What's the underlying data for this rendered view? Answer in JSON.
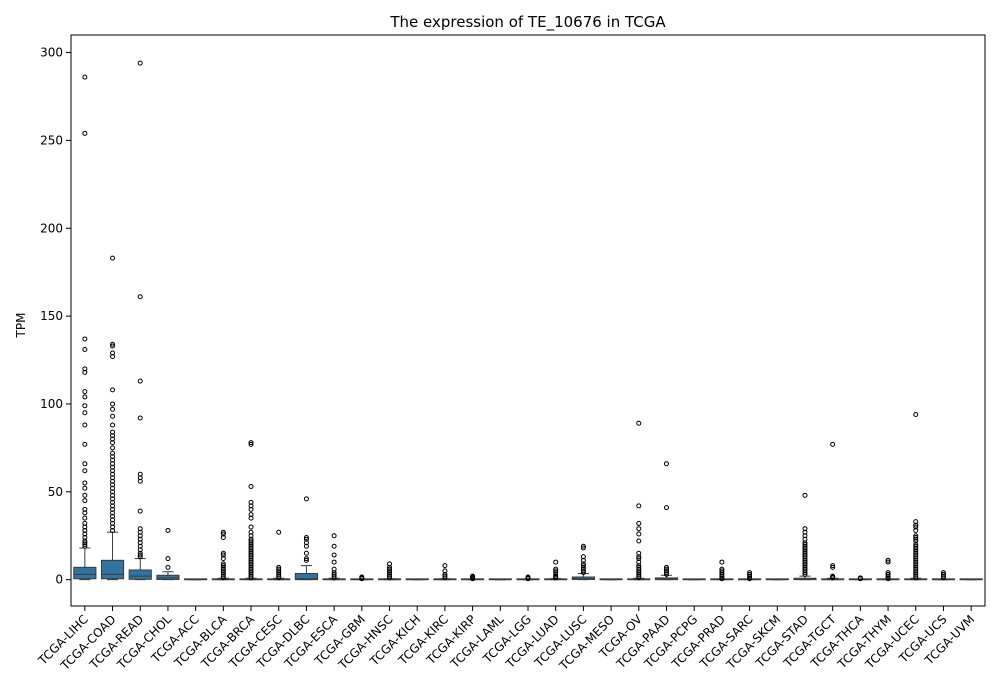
{
  "chart_data": {
    "type": "box",
    "title": "The expression of TE_10676 in TCGA",
    "xlabel": "",
    "ylabel": "TPM",
    "ylim": [
      -15,
      310
    ],
    "yticks": [
      0,
      50,
      100,
      150,
      200,
      250,
      300
    ],
    "grid": false,
    "legend": "none",
    "box_color": "#3274a1",
    "categories": [
      "TCGA-LIHC",
      "TCGA-COAD",
      "TCGA-READ",
      "TCGA-CHOL",
      "TCGA-ACC",
      "TCGA-BLCA",
      "TCGA-BRCA",
      "TCGA-CESC",
      "TCGA-DLBC",
      "TCGA-ESCA",
      "TCGA-GBM",
      "TCGA-HNSC",
      "TCGA-KICH",
      "TCGA-KIRC",
      "TCGA-KIRP",
      "TCGA-LAML",
      "TCGA-LGG",
      "TCGA-LUAD",
      "TCGA-LUSC",
      "TCGA-MESO",
      "TCGA-OV",
      "TCGA-PAAD",
      "TCGA-PCPG",
      "TCGA-PRAD",
      "TCGA-SARC",
      "TCGA-SKCM",
      "TCGA-STAD",
      "TCGA-TGCT",
      "TCGA-THCA",
      "TCGA-THYM",
      "TCGA-UCEC",
      "TCGA-UCS",
      "TCGA-UVM"
    ],
    "boxes": [
      {
        "min": 0,
        "q1": 0.5,
        "median": 3,
        "q3": 7,
        "max": 18,
        "outliers": [
          19,
          20,
          21,
          22,
          24,
          26,
          28,
          30,
          32,
          35,
          38,
          40,
          45,
          48,
          52,
          55,
          62,
          66,
          77,
          88,
          95,
          99,
          104,
          107,
          118,
          120,
          131,
          137,
          254,
          286
        ]
      },
      {
        "min": 0,
        "q1": 0.5,
        "median": 3,
        "q3": 11,
        "max": 27,
        "outliers": [
          28,
          30,
          32,
          34,
          36,
          38,
          40,
          42,
          44,
          46,
          48,
          50,
          52,
          54,
          56,
          58,
          60,
          62,
          64,
          66,
          68,
          70,
          72,
          75,
          78,
          80,
          82,
          84,
          88,
          93,
          97,
          100,
          108,
          127,
          129,
          133,
          134,
          183
        ]
      },
      {
        "min": 0,
        "q1": 0.2,
        "median": 2,
        "q3": 5.5,
        "max": 12,
        "outliers": [
          13,
          14,
          15,
          17,
          19,
          21,
          23,
          25,
          27,
          29,
          39,
          56,
          58,
          60,
          92,
          113,
          161,
          294
        ]
      },
      {
        "min": 0,
        "q1": 0.1,
        "median": 1,
        "q3": 2.5,
        "max": 4.5,
        "outliers": [
          7,
          12,
          28
        ]
      },
      {
        "min": 0,
        "q1": 0,
        "median": 0,
        "q3": 0,
        "max": 0,
        "outliers": []
      },
      {
        "min": 0,
        "q1": 0,
        "median": 0,
        "q3": 0.3,
        "max": 0.8,
        "outliers": [
          1,
          2,
          3,
          4,
          5,
          6,
          7,
          8,
          9,
          12,
          14,
          15,
          24,
          26,
          27
        ]
      },
      {
        "min": 0,
        "q1": 0,
        "median": 0,
        "q3": 0.3,
        "max": 0.8,
        "outliers": [
          1,
          2,
          3,
          4,
          5,
          6,
          7,
          8,
          9,
          10,
          11,
          12,
          13,
          14,
          15,
          16,
          17,
          18,
          19,
          20,
          21,
          22,
          23,
          25,
          27,
          30,
          35,
          37,
          40,
          42,
          44,
          53,
          77,
          78
        ]
      },
      {
        "min": 0,
        "q1": 0,
        "median": 0,
        "q3": 0.3,
        "max": 0.8,
        "outliers": [
          1,
          2,
          3,
          4,
          5,
          6,
          7,
          27
        ]
      },
      {
        "min": 0,
        "q1": 0,
        "median": 0.5,
        "q3": 3.5,
        "max": 8,
        "outliers": [
          11,
          12,
          15,
          19,
          21,
          23,
          24,
          46
        ]
      },
      {
        "min": 0,
        "q1": 0,
        "median": 0,
        "q3": 0.3,
        "max": 0.8,
        "outliers": [
          1,
          2,
          3,
          4,
          6,
          10,
          14,
          19,
          25
        ]
      },
      {
        "min": 0,
        "q1": 0,
        "median": 0,
        "q3": 0,
        "max": 0,
        "outliers": [
          0.5,
          1,
          1.5
        ]
      },
      {
        "min": 0,
        "q1": 0,
        "median": 0,
        "q3": 0.2,
        "max": 0.5,
        "outliers": [
          1,
          2,
          3,
          4,
          5,
          6,
          7,
          9
        ]
      },
      {
        "min": 0,
        "q1": 0,
        "median": 0,
        "q3": 0,
        "max": 0,
        "outliers": []
      },
      {
        "min": 0,
        "q1": 0,
        "median": 0,
        "q3": 0.2,
        "max": 0.5,
        "outliers": [
          1,
          2,
          3,
          5,
          8
        ]
      },
      {
        "min": 0,
        "q1": 0,
        "median": 0,
        "q3": 0.1,
        "max": 0.3,
        "outliers": [
          0.5,
          1,
          1.5,
          2
        ]
      },
      {
        "min": 0,
        "q1": 0,
        "median": 0,
        "q3": 0,
        "max": 0,
        "outliers": []
      },
      {
        "min": 0,
        "q1": 0,
        "median": 0,
        "q3": 0,
        "max": 0,
        "outliers": [
          0.5,
          1,
          1.5
        ]
      },
      {
        "min": 0,
        "q1": 0,
        "median": 0,
        "q3": 0.2,
        "max": 0.6,
        "outliers": [
          1,
          1.5,
          2,
          3,
          4,
          5,
          6,
          10
        ]
      },
      {
        "min": 0,
        "q1": 0.1,
        "median": 0.5,
        "q3": 1.5,
        "max": 3.5,
        "outliers": [
          4,
          5,
          6,
          7,
          8,
          9,
          11,
          13,
          18,
          19
        ]
      },
      {
        "min": 0,
        "q1": 0,
        "median": 0,
        "q3": 0,
        "max": 0,
        "outliers": []
      },
      {
        "min": 0,
        "q1": 0,
        "median": 0,
        "q3": 0.3,
        "max": 0.8,
        "outliers": [
          1,
          2,
          3,
          4,
          5,
          6,
          7,
          8,
          10,
          12,
          13,
          15,
          22,
          26,
          29,
          32,
          42,
          89
        ]
      },
      {
        "min": 0,
        "q1": 0,
        "median": 0.3,
        "q3": 1,
        "max": 2.5,
        "outliers": [
          3,
          4,
          5,
          6,
          7,
          41,
          66
        ]
      },
      {
        "min": 0,
        "q1": 0,
        "median": 0,
        "q3": 0,
        "max": 0,
        "outliers": []
      },
      {
        "min": 0,
        "q1": 0,
        "median": 0,
        "q3": 0.1,
        "max": 0.3,
        "outliers": [
          0.5,
          1,
          2,
          3,
          4,
          5,
          6,
          10
        ]
      },
      {
        "min": 0,
        "q1": 0,
        "median": 0,
        "q3": 0.1,
        "max": 0.3,
        "outliers": [
          0.5,
          1,
          2,
          3,
          4
        ]
      },
      {
        "min": 0,
        "q1": 0,
        "median": 0,
        "q3": 0,
        "max": 0,
        "outliers": []
      },
      {
        "min": 0,
        "q1": 0,
        "median": 0.2,
        "q3": 0.8,
        "max": 2,
        "outliers": [
          3,
          4,
          5,
          6,
          7,
          8,
          9,
          10,
          11,
          12,
          13,
          14,
          15,
          16,
          17,
          18,
          19,
          20,
          21,
          23,
          25,
          27,
          29,
          48
        ]
      },
      {
        "min": 0,
        "q1": 0,
        "median": 0,
        "q3": 0.3,
        "max": 0.8,
        "outliers": [
          1,
          1.5,
          2,
          7,
          8,
          77
        ]
      },
      {
        "min": 0,
        "q1": 0,
        "median": 0,
        "q3": 0,
        "max": 0,
        "outliers": [
          0.5,
          1
        ]
      },
      {
        "min": 0,
        "q1": 0,
        "median": 0,
        "q3": 0.1,
        "max": 0.3,
        "outliers": [
          0.5,
          1,
          2,
          3,
          4,
          10,
          11
        ]
      },
      {
        "min": 0,
        "q1": 0,
        "median": 0,
        "q3": 0.3,
        "max": 0.8,
        "outliers": [
          1,
          2,
          3,
          4,
          5,
          6,
          7,
          8,
          9,
          10,
          11,
          12,
          13,
          14,
          15,
          16,
          17,
          18,
          19,
          20,
          22,
          23,
          24,
          25,
          28,
          30,
          31,
          33,
          94
        ]
      },
      {
        "min": 0,
        "q1": 0,
        "median": 0,
        "q3": 0,
        "max": 0,
        "outliers": [
          1,
          2,
          3,
          4
        ]
      },
      {
        "min": 0,
        "q1": 0,
        "median": 0,
        "q3": 0,
        "max": 0,
        "outliers": []
      }
    ]
  }
}
